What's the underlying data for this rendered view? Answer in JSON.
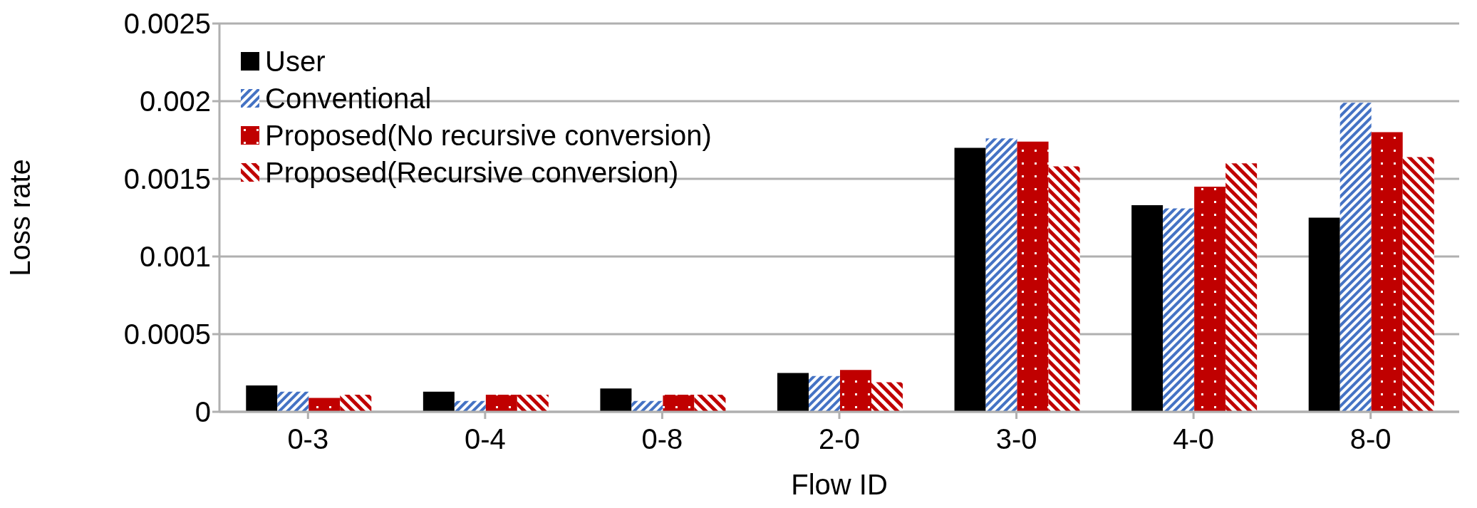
{
  "chart_data": {
    "type": "bar",
    "xlabel": "Flow ID",
    "ylabel": "Loss rate",
    "categories": [
      "0-3",
      "0-4",
      "0-8",
      "2-0",
      "3-0",
      "4-0",
      "8-0"
    ],
    "series": [
      {
        "name": "User",
        "color": "#000000",
        "values": [
          0.00017,
          0.00013,
          0.00015,
          0.00025,
          0.0017,
          0.00133,
          0.00125
        ]
      },
      {
        "name": "Conventional",
        "color": "#4472c4",
        "values": [
          0.00013,
          7e-05,
          7e-05,
          0.00023,
          0.00176,
          0.00131,
          0.00199
        ]
      },
      {
        "name": "Proposed(No recursive conversion)",
        "color": "#c00000",
        "values": [
          9e-05,
          0.00011,
          0.00011,
          0.00027,
          0.00174,
          0.00145,
          0.0018
        ]
      },
      {
        "name": "Proposed(Recursive conversion)",
        "color": "#c00000",
        "values": [
          0.00011,
          0.00011,
          0.00011,
          0.00019,
          0.00158,
          0.0016,
          0.00164
        ]
      }
    ],
    "ylim": [
      0,
      0.0025
    ],
    "yticks": [
      0,
      0.0005,
      0.001,
      0.0015,
      0.002,
      0.0025
    ],
    "grid": "y",
    "legend": "top left"
  }
}
